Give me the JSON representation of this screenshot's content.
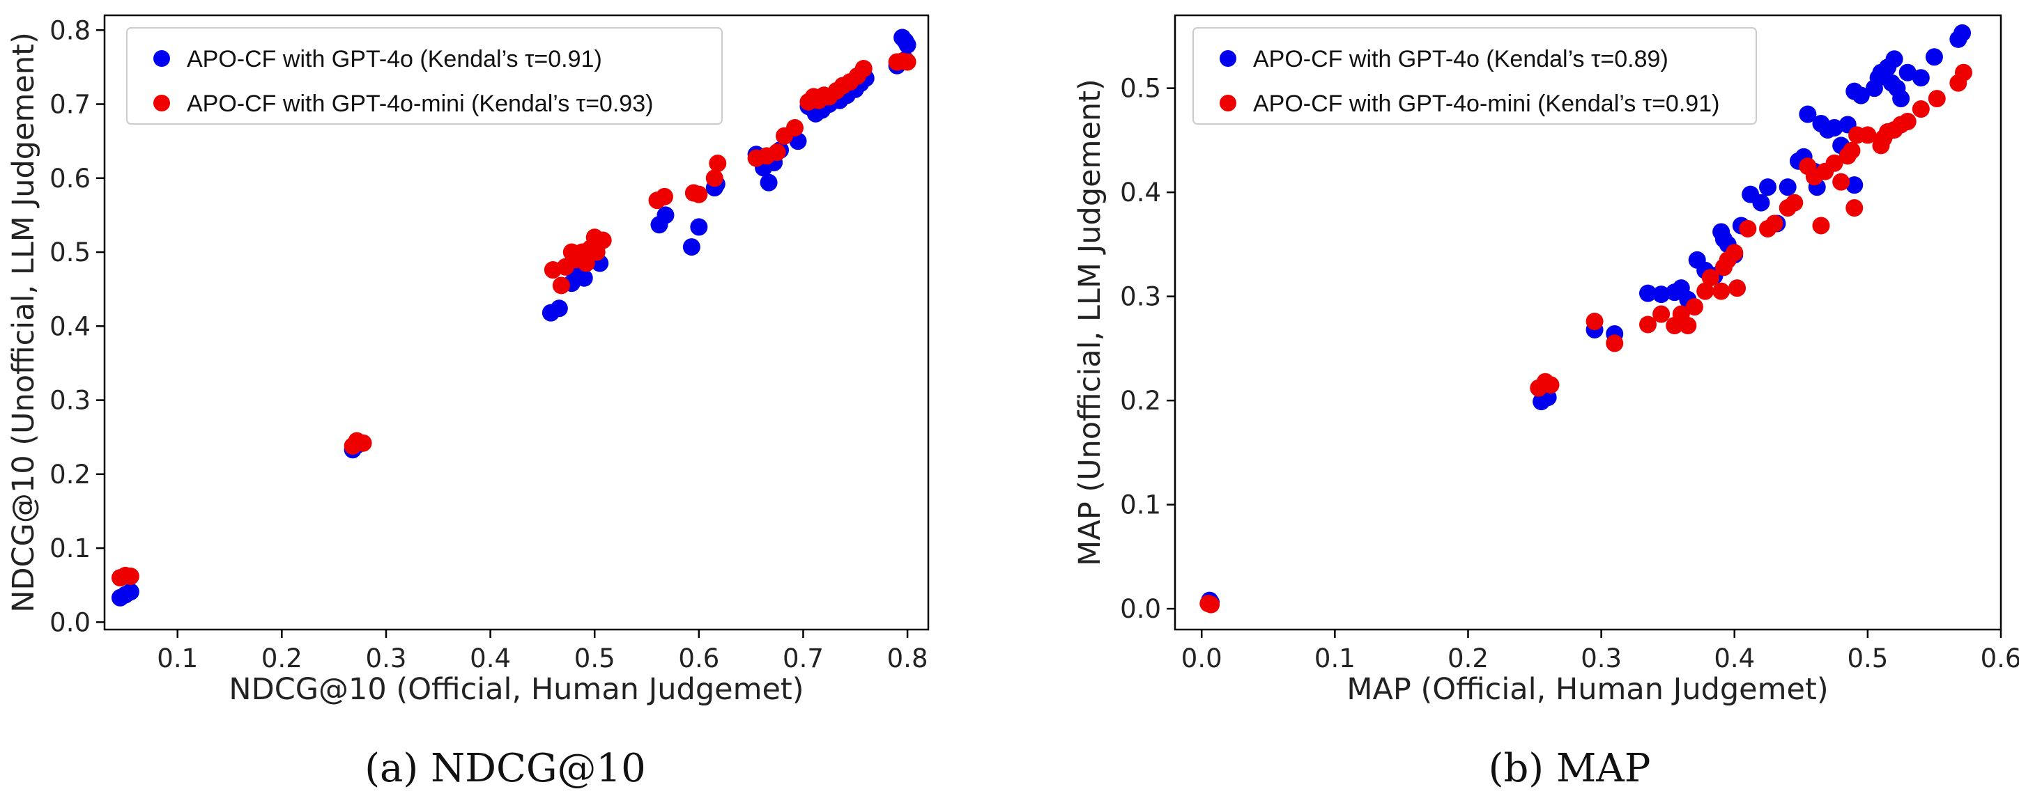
{
  "chart_data": [
    {
      "type": "scatter",
      "caption": "(a)  NDCG@10",
      "xlabel": "NDCG@10 (Official, Human Judgemet)",
      "ylabel": "NDCG@10 (Unofficial, LLM Judgement)",
      "xlim": [
        0.03,
        0.82
      ],
      "ylim": [
        -0.01,
        0.82
      ],
      "xticks": [
        "0.1",
        "0.2",
        "0.3",
        "0.4",
        "0.5",
        "0.6",
        "0.7",
        "0.8"
      ],
      "yticks": [
        "0.0",
        "0.1",
        "0.2",
        "0.3",
        "0.4",
        "0.5",
        "0.6",
        "0.7",
        "0.8"
      ],
      "legend_position": "upper-left",
      "series": [
        {
          "name": "APO-CF with GPT-4o (Kendal’s τ=0.91)",
          "color": "#0000ee",
          "points": [
            [
              0.045,
              0.033
            ],
            [
              0.05,
              0.037
            ],
            [
              0.055,
              0.041
            ],
            [
              0.268,
              0.233
            ],
            [
              0.272,
              0.239
            ],
            [
              0.275,
              0.242
            ],
            [
              0.458,
              0.418
            ],
            [
              0.466,
              0.424
            ],
            [
              0.478,
              0.458
            ],
            [
              0.484,
              0.468
            ],
            [
              0.49,
              0.465
            ],
            [
              0.505,
              0.485
            ],
            [
              0.48,
              0.475
            ],
            [
              0.562,
              0.537
            ],
            [
              0.568,
              0.55
            ],
            [
              0.593,
              0.507
            ],
            [
              0.6,
              0.534
            ],
            [
              0.615,
              0.587
            ],
            [
              0.617,
              0.592
            ],
            [
              0.655,
              0.632
            ],
            [
              0.662,
              0.614
            ],
            [
              0.667,
              0.594
            ],
            [
              0.672,
              0.621
            ],
            [
              0.678,
              0.638
            ],
            [
              0.695,
              0.65
            ],
            [
              0.705,
              0.697
            ],
            [
              0.712,
              0.687
            ],
            [
              0.718,
              0.692
            ],
            [
              0.725,
              0.7
            ],
            [
              0.735,
              0.705
            ],
            [
              0.742,
              0.712
            ],
            [
              0.75,
              0.72
            ],
            [
              0.755,
              0.728
            ],
            [
              0.76,
              0.735
            ],
            [
              0.79,
              0.752
            ],
            [
              0.795,
              0.79
            ],
            [
              0.798,
              0.785
            ],
            [
              0.8,
              0.78
            ],
            [
              0.798,
              0.76
            ]
          ]
        },
        {
          "name": "APO-CF with GPT-4o-mini (Kendal’s τ=0.93)",
          "color": "#ee0000",
          "points": [
            [
              0.045,
              0.06
            ],
            [
              0.05,
              0.063
            ],
            [
              0.055,
              0.062
            ],
            [
              0.268,
              0.238
            ],
            [
              0.272,
              0.245
            ],
            [
              0.278,
              0.242
            ],
            [
              0.46,
              0.476
            ],
            [
              0.468,
              0.455
            ],
            [
              0.472,
              0.48
            ],
            [
              0.478,
              0.5
            ],
            [
              0.482,
              0.49
            ],
            [
              0.488,
              0.5
            ],
            [
              0.492,
              0.485
            ],
            [
              0.496,
              0.505
            ],
            [
              0.5,
              0.52
            ],
            [
              0.502,
              0.5
            ],
            [
              0.508,
              0.516
            ],
            [
              0.56,
              0.57
            ],
            [
              0.567,
              0.575
            ],
            [
              0.595,
              0.58
            ],
            [
              0.6,
              0.578
            ],
            [
              0.618,
              0.62
            ],
            [
              0.615,
              0.6
            ],
            [
              0.655,
              0.627
            ],
            [
              0.665,
              0.63
            ],
            [
              0.675,
              0.635
            ],
            [
              0.682,
              0.657
            ],
            [
              0.692,
              0.668
            ],
            [
              0.705,
              0.703
            ],
            [
              0.71,
              0.71
            ],
            [
              0.715,
              0.705
            ],
            [
              0.72,
              0.712
            ],
            [
              0.725,
              0.71
            ],
            [
              0.732,
              0.718
            ],
            [
              0.738,
              0.725
            ],
            [
              0.745,
              0.73
            ],
            [
              0.752,
              0.738
            ],
            [
              0.758,
              0.748
            ],
            [
              0.79,
              0.757
            ],
            [
              0.795,
              0.758
            ],
            [
              0.8,
              0.757
            ]
          ]
        }
      ]
    },
    {
      "type": "scatter",
      "caption": "(b)  MAP",
      "xlabel": "MAP (Official, Human Judgemet)",
      "ylabel": "MAP (Unofficial, LLM Judgement)",
      "xlim": [
        -0.02,
        0.6
      ],
      "ylim": [
        -0.02,
        0.57
      ],
      "xticks": [
        "0.0",
        "0.1",
        "0.2",
        "0.3",
        "0.4",
        "0.5",
        "0.6"
      ],
      "yticks": [
        "0.0",
        "0.1",
        "0.2",
        "0.3",
        "0.4",
        "0.5"
      ],
      "legend_position": "upper-left",
      "series": [
        {
          "name": "APO-CF with GPT-4o (Kendal’s τ=0.89)",
          "color": "#0000ee",
          "points": [
            [
              0.006,
              0.008
            ],
            [
              0.007,
              0.006
            ],
            [
              0.255,
              0.199
            ],
            [
              0.26,
              0.203
            ],
            [
              0.295,
              0.268
            ],
            [
              0.31,
              0.264
            ],
            [
              0.335,
              0.303
            ],
            [
              0.345,
              0.302
            ],
            [
              0.355,
              0.304
            ],
            [
              0.36,
              0.308
            ],
            [
              0.365,
              0.297
            ],
            [
              0.372,
              0.335
            ],
            [
              0.378,
              0.325
            ],
            [
              0.385,
              0.32
            ],
            [
              0.39,
              0.362
            ],
            [
              0.392,
              0.355
            ],
            [
              0.395,
              0.35
            ],
            [
              0.4,
              0.34
            ],
            [
              0.405,
              0.368
            ],
            [
              0.412,
              0.398
            ],
            [
              0.42,
              0.39
            ],
            [
              0.425,
              0.405
            ],
            [
              0.432,
              0.37
            ],
            [
              0.44,
              0.405
            ],
            [
              0.448,
              0.43
            ],
            [
              0.452,
              0.434
            ],
            [
              0.455,
              0.475
            ],
            [
              0.46,
              0.42
            ],
            [
              0.462,
              0.405
            ],
            [
              0.465,
              0.466
            ],
            [
              0.47,
              0.46
            ],
            [
              0.475,
              0.462
            ],
            [
              0.48,
              0.445
            ],
            [
              0.485,
              0.465
            ],
            [
              0.49,
              0.407
            ],
            [
              0.49,
              0.497
            ],
            [
              0.495,
              0.493
            ],
            [
              0.505,
              0.5
            ],
            [
              0.508,
              0.51
            ],
            [
              0.51,
              0.515
            ],
            [
              0.515,
              0.52
            ],
            [
              0.518,
              0.505
            ],
            [
              0.52,
              0.528
            ],
            [
              0.522,
              0.5
            ],
            [
              0.525,
              0.49
            ],
            [
              0.53,
              0.515
            ],
            [
              0.54,
              0.51
            ],
            [
              0.55,
              0.53
            ],
            [
              0.568,
              0.547
            ],
            [
              0.571,
              0.553
            ]
          ]
        },
        {
          "name": "APO-CF with GPT-4o-mini (Kendal’s τ=0.91)",
          "color": "#ee0000",
          "points": [
            [
              0.005,
              0.005
            ],
            [
              0.007,
              0.004
            ],
            [
              0.253,
              0.212
            ],
            [
              0.258,
              0.218
            ],
            [
              0.262,
              0.215
            ],
            [
              0.295,
              0.276
            ],
            [
              0.31,
              0.255
            ],
            [
              0.335,
              0.273
            ],
            [
              0.345,
              0.283
            ],
            [
              0.355,
              0.272
            ],
            [
              0.36,
              0.283
            ],
            [
              0.365,
              0.272
            ],
            [
              0.37,
              0.29
            ],
            [
              0.378,
              0.305
            ],
            [
              0.382,
              0.318
            ],
            [
              0.39,
              0.305
            ],
            [
              0.392,
              0.328
            ],
            [
              0.395,
              0.335
            ],
            [
              0.4,
              0.342
            ],
            [
              0.402,
              0.308
            ],
            [
              0.41,
              0.365
            ],
            [
              0.425,
              0.365
            ],
            [
              0.43,
              0.37
            ],
            [
              0.44,
              0.385
            ],
            [
              0.445,
              0.39
            ],
            [
              0.455,
              0.425
            ],
            [
              0.46,
              0.415
            ],
            [
              0.465,
              0.368
            ],
            [
              0.468,
              0.42
            ],
            [
              0.475,
              0.428
            ],
            [
              0.48,
              0.41
            ],
            [
              0.485,
              0.435
            ],
            [
              0.488,
              0.44
            ],
            [
              0.49,
              0.385
            ],
            [
              0.492,
              0.455
            ],
            [
              0.5,
              0.455
            ],
            [
              0.51,
              0.445
            ],
            [
              0.512,
              0.452
            ],
            [
              0.515,
              0.458
            ],
            [
              0.52,
              0.46
            ],
            [
              0.525,
              0.465
            ],
            [
              0.53,
              0.468
            ],
            [
              0.54,
              0.48
            ],
            [
              0.552,
              0.49
            ],
            [
              0.568,
              0.505
            ],
            [
              0.572,
              0.515
            ]
          ]
        }
      ]
    }
  ]
}
